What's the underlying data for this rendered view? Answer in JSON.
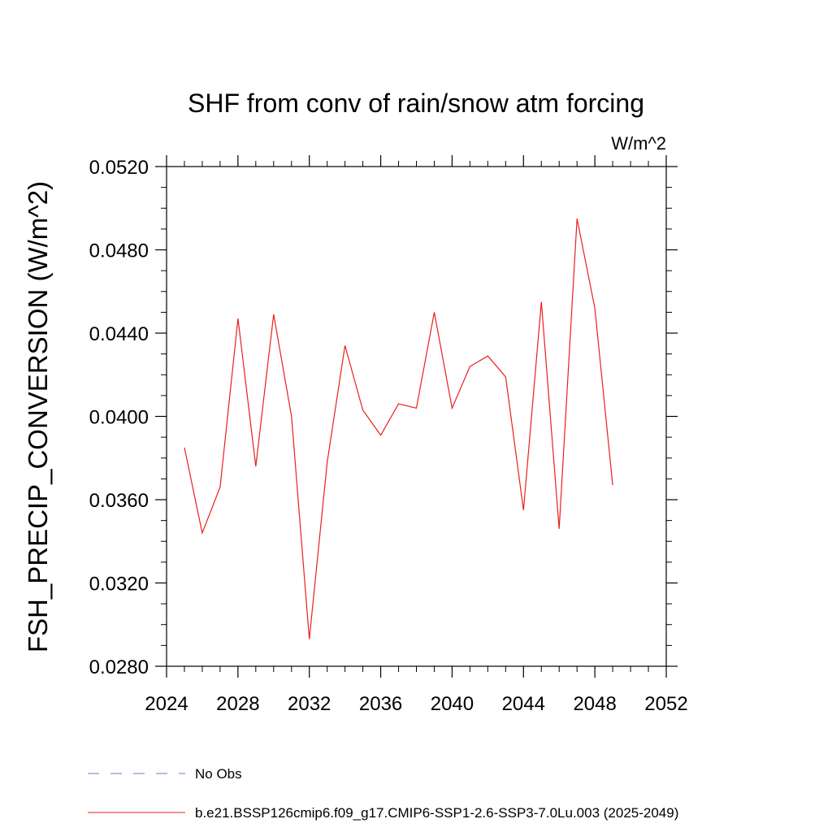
{
  "chart_data": {
    "type": "line",
    "title": "SHF from conv of rain/snow atm forcing",
    "units_label": "W/m^2",
    "xlabel": "",
    "ylabel": "FSH_PRECIP_CONVERSION  (W/m^2)",
    "xlim": [
      2024,
      2052
    ],
    "ylim": [
      0.028,
      0.052
    ],
    "x_ticks": [
      2024,
      2028,
      2032,
      2036,
      2040,
      2044,
      2048,
      2052
    ],
    "x_tick_labels": [
      "2024",
      "2028",
      "2032",
      "2036",
      "2040",
      "2044",
      "2048",
      "2052"
    ],
    "y_ticks": [
      0.028,
      0.032,
      0.036,
      0.04,
      0.044,
      0.048,
      0.052
    ],
    "y_tick_labels": [
      "0.0280",
      "0.0320",
      "0.0360",
      "0.0400",
      "0.0440",
      "0.0480",
      "0.0520"
    ],
    "grid": false,
    "legend_placement": "bottom",
    "legend": [
      {
        "label": "No Obs",
        "color": "#7b6fc4",
        "style": "dashed"
      },
      {
        "label": "b.e21.BSSP126cmip6.f09_g17.CMIP6-SSP1-2.6-SSP3-7.0Lu.003 (2025-2049)",
        "color": "#e8201e",
        "style": "solid"
      }
    ],
    "series": [
      {
        "name": "b.e21.BSSP126cmip6.f09_g17.CMIP6-SSP1-2.6-SSP3-7.0Lu.003 (2025-2049)",
        "color": "#e8201e",
        "x": [
          2025,
          2026,
          2027,
          2028,
          2029,
          2030,
          2031,
          2032,
          2033,
          2034,
          2035,
          2036,
          2037,
          2038,
          2039,
          2040,
          2041,
          2042,
          2043,
          2044,
          2045,
          2046,
          2047,
          2048,
          2049
        ],
        "y": [
          0.0385,
          0.0344,
          0.0366,
          0.0447,
          0.0376,
          0.0449,
          0.04,
          0.0293,
          0.0378,
          0.0434,
          0.0403,
          0.0391,
          0.0406,
          0.0404,
          0.045,
          0.0404,
          0.0424,
          0.0429,
          0.0419,
          0.0355,
          0.0455,
          0.0346,
          0.0495,
          0.0452,
          0.0367
        ]
      }
    ]
  }
}
